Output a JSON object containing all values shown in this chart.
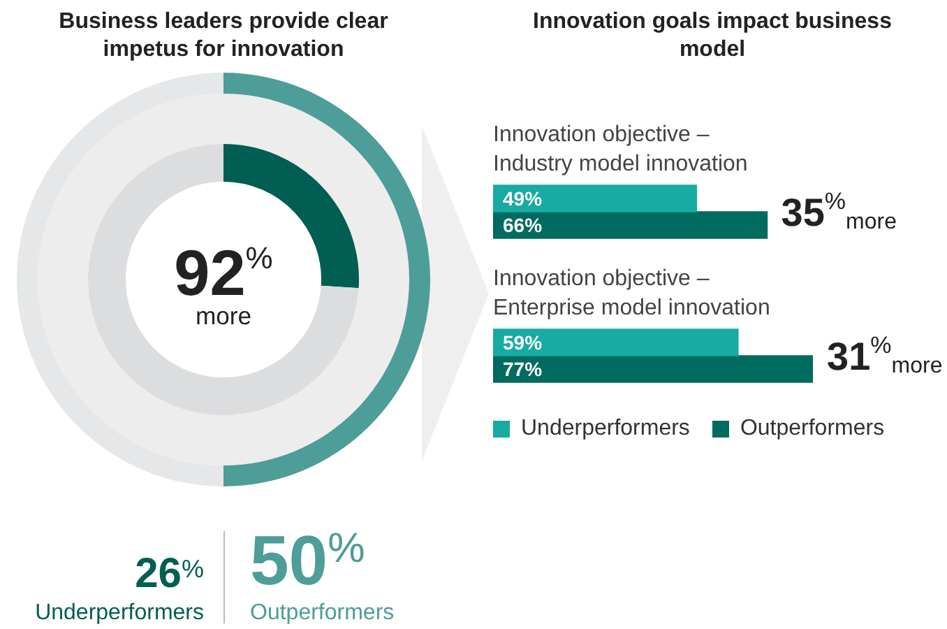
{
  "chart_data": [
    {
      "type": "donut",
      "title": "Business leaders provide clear impetus for innovation",
      "categories": [
        null,
        null
      ],
      "series": [
        {
          "name": "Outperformers",
          "values": [
            50,
            50
          ],
          "colors": [
            "#4d9d98",
            "#e6e7e8"
          ]
        },
        {
          "name": "Underperformers",
          "values": [
            26,
            74
          ],
          "colors": [
            "#005e52",
            "#dcdddf"
          ]
        }
      ],
      "annotations": [
        "92$^{%}$ more",
        "50$^{%}$",
        "26$^{%}$"
      ]
    },
    {
      "type": "bar",
      "orientation": "horizontal",
      "title": "Innovation goals impact business model",
      "categories": [
        "Innovation objective – Industry model innovation",
        "Innovation objective – Enterprise model innovation"
      ],
      "series": [
        {
          "name": "Underperformers",
          "color": "#17aba1",
          "values": [
            49,
            59
          ],
          "value_labels": [
            "49%",
            "59%"
          ]
        },
        {
          "name": "Outperformers",
          "color": "#006b5f",
          "values": [
            66,
            77
          ],
          "value_labels": [
            "66%",
            "77%"
          ]
        }
      ],
      "annotations": [
        "35$^{%}$more",
        "31$^{%}$more"
      ],
      "legend": "bottom",
      "tick_labels": "y"
    }
  ]
}
